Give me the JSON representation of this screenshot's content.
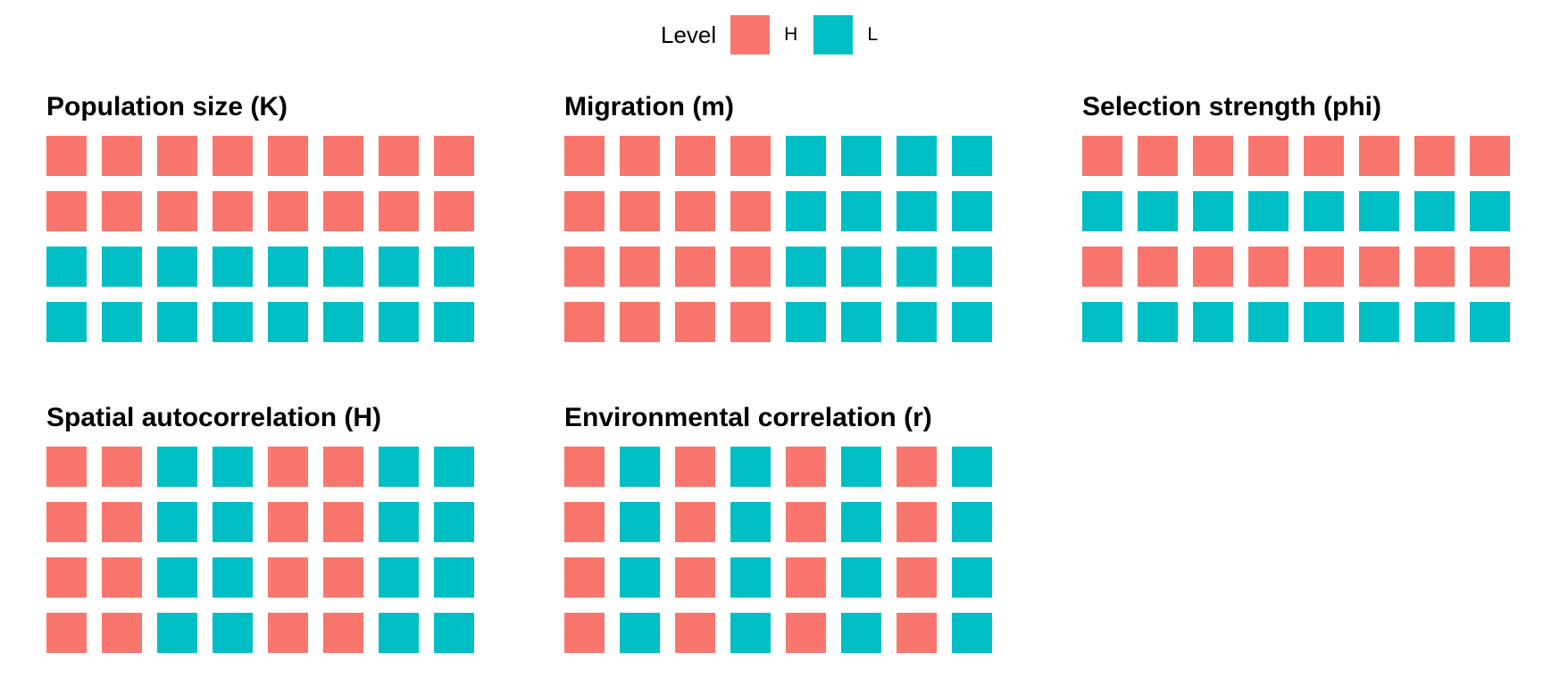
{
  "legend": {
    "title": "Level",
    "items": [
      {
        "label": "H",
        "color": "#F8766D"
      },
      {
        "label": "L",
        "color": "#00BFC4"
      }
    ]
  },
  "chart_data": {
    "type": "heatmap",
    "legend_position": "top",
    "colors": {
      "H": "#F8766D",
      "L": "#00BFC4"
    },
    "panels": [
      {
        "title": "Population size (K)",
        "grid": [
          [
            "H",
            "H",
            "H",
            "H",
            "H",
            "H",
            "H",
            "H"
          ],
          [
            "H",
            "H",
            "H",
            "H",
            "H",
            "H",
            "H",
            "H"
          ],
          [
            "L",
            "L",
            "L",
            "L",
            "L",
            "L",
            "L",
            "L"
          ],
          [
            "L",
            "L",
            "L",
            "L",
            "L",
            "L",
            "L",
            "L"
          ]
        ]
      },
      {
        "title": "Migration (m)",
        "grid": [
          [
            "H",
            "H",
            "H",
            "H",
            "L",
            "L",
            "L",
            "L"
          ],
          [
            "H",
            "H",
            "H",
            "H",
            "L",
            "L",
            "L",
            "L"
          ],
          [
            "H",
            "H",
            "H",
            "H",
            "L",
            "L",
            "L",
            "L"
          ],
          [
            "H",
            "H",
            "H",
            "H",
            "L",
            "L",
            "L",
            "L"
          ]
        ]
      },
      {
        "title": "Selection strength (phi)",
        "grid": [
          [
            "H",
            "H",
            "H",
            "H",
            "H",
            "H",
            "H",
            "H"
          ],
          [
            "L",
            "L",
            "L",
            "L",
            "L",
            "L",
            "L",
            "L"
          ],
          [
            "H",
            "H",
            "H",
            "H",
            "H",
            "H",
            "H",
            "H"
          ],
          [
            "L",
            "L",
            "L",
            "L",
            "L",
            "L",
            "L",
            "L"
          ]
        ]
      },
      {
        "title": "Spatial autocorrelation (H)",
        "grid": [
          [
            "H",
            "H",
            "L",
            "L",
            "H",
            "H",
            "L",
            "L"
          ],
          [
            "H",
            "H",
            "L",
            "L",
            "H",
            "H",
            "L",
            "L"
          ],
          [
            "H",
            "H",
            "L",
            "L",
            "H",
            "H",
            "L",
            "L"
          ],
          [
            "H",
            "H",
            "L",
            "L",
            "H",
            "H",
            "L",
            "L"
          ]
        ]
      },
      {
        "title": "Environmental correlation (r)",
        "grid": [
          [
            "H",
            "L",
            "H",
            "L",
            "H",
            "L",
            "H",
            "L"
          ],
          [
            "H",
            "L",
            "H",
            "L",
            "H",
            "L",
            "H",
            "L"
          ],
          [
            "H",
            "L",
            "H",
            "L",
            "H",
            "L",
            "H",
            "L"
          ],
          [
            "H",
            "L",
            "H",
            "L",
            "H",
            "L",
            "H",
            "L"
          ]
        ]
      }
    ]
  }
}
